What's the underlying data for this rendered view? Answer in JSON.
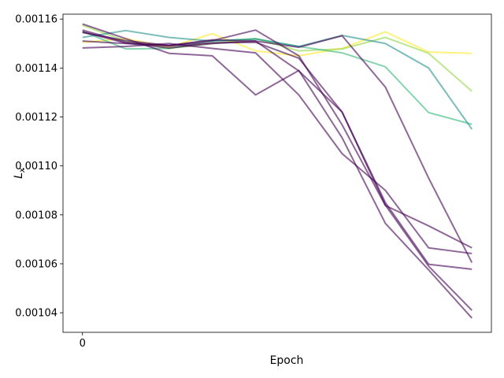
{
  "chart_data": {
    "type": "line",
    "title": "",
    "xlabel": "Epoch",
    "ylabel_main": "L",
    "ylabel_sub": "x",
    "x": [
      0,
      1,
      2,
      3,
      4,
      5,
      6,
      7,
      8,
      9
    ],
    "xticks": [
      0
    ],
    "xtick_labels": [
      "0"
    ],
    "ylim": [
      0.001032,
      0.001162
    ],
    "xlim": [
      -0.45,
      9.45
    ],
    "yticks": [
      0.00104,
      0.00106,
      0.00108,
      0.0011,
      0.00112,
      0.00114,
      0.00116
    ],
    "ytick_labels": [
      "0.00104",
      "0.00106",
      "0.00108",
      "0.00110",
      "0.00112",
      "0.00114",
      "0.00116"
    ],
    "grid": false,
    "legend": "none",
    "series": [
      {
        "color": "#fde725",
        "values": [
          0.0011505,
          0.001152,
          0.0011485,
          0.001154,
          0.001147,
          0.001145,
          0.001148,
          0.0011548,
          0.0011465,
          0.001146
        ]
      },
      {
        "color": "#8fd744",
        "values": [
          0.0011575,
          0.001151,
          0.001148,
          0.00115,
          0.001152,
          0.001147,
          0.0011478,
          0.0011525,
          0.001146,
          0.0011305
        ]
      },
      {
        "color": "#35b779",
        "values": [
          0.001155,
          0.0011478,
          0.001148,
          0.001151,
          0.001152,
          0.0011488,
          0.0011462,
          0.0011405,
          0.0011218,
          0.001117
        ]
      },
      {
        "color": "#21918c",
        "values": [
          0.0011525,
          0.0011553,
          0.0011525,
          0.001151,
          0.0011518,
          0.0011488,
          0.0011533,
          0.00115,
          0.00114,
          0.001115
        ]
      },
      {
        "color": "#440154",
        "values": [
          0.0011555,
          0.0011505,
          0.001149,
          0.0011503,
          0.0011505,
          0.001144,
          0.001122,
          0.001084,
          0.001059,
          0.001041
        ]
      },
      {
        "color": "#440154",
        "values": [
          0.0011548,
          0.0011502,
          0.0011482,
          0.00115,
          0.001151,
          0.0011388,
          0.001122,
          0.001085,
          0.0010598,
          0.0010578
        ]
      },
      {
        "color": "#440154",
        "values": [
          0.001158,
          0.001152,
          0.001146,
          0.001145,
          0.001129,
          0.001139,
          0.0011115,
          0.0010765,
          0.0010575,
          0.0010378
        ]
      },
      {
        "color": "#440154",
        "values": [
          0.0011482,
          0.0011488,
          0.00115,
          0.001148,
          0.0011462,
          0.001129,
          0.001105,
          0.00109,
          0.0010665,
          0.0010642
        ]
      },
      {
        "color": "#440154",
        "values": [
          0.0011545,
          0.0011512,
          0.0011492,
          0.0011512,
          0.0011555,
          0.001145,
          0.0011168,
          0.0010838,
          0.0010755,
          0.0010665
        ]
      },
      {
        "color": "#440154",
        "values": [
          0.001151,
          0.00115,
          0.0011492,
          0.0011515,
          0.001151,
          0.0011485,
          0.0011532,
          0.0011322,
          0.001095,
          0.0010605
        ]
      }
    ]
  }
}
